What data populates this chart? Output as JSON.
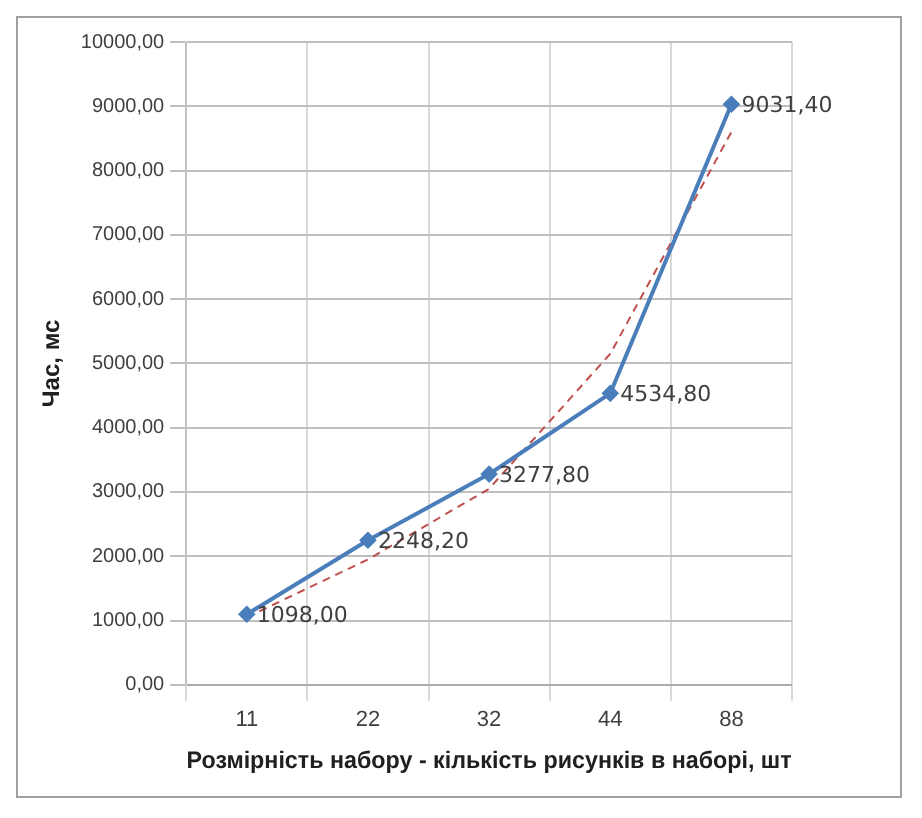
{
  "chart_data": {
    "type": "line",
    "xlabel": "Розмірність набору - кількість рисунків в наборі, шт",
    "ylabel": "Час, мс",
    "categories": [
      "11",
      "22",
      "32",
      "44",
      "88"
    ],
    "series": [
      {
        "color": "#4a7ebb",
        "values": [
          1098.0,
          2248.2,
          3277.8,
          4534.8,
          9031.4
        ],
        "value_labels": [
          "1098,00",
          "2248,20",
          "3277,80",
          "4534,80",
          "9031,40"
        ],
        "marker": "diamond",
        "line_style": "solid"
      },
      {
        "type": "line",
        "color": "#c0504d",
        "values": [
          1050,
          1950,
          3050,
          5150,
          8600
        ],
        "marker": "none",
        "line_style": "dashed"
      }
    ],
    "ylim": [
      0,
      10000
    ],
    "yticks": [
      {
        "value": 0,
        "label": "0,00"
      },
      {
        "value": 1000,
        "label": "1000,00"
      },
      {
        "value": 2000,
        "label": "2000,00"
      },
      {
        "value": 3000,
        "label": "3000,00"
      },
      {
        "value": 4000,
        "label": "4000,00"
      },
      {
        "value": 5000,
        "label": "5000,00"
      },
      {
        "value": 6000,
        "label": "6000,00"
      },
      {
        "value": 7000,
        "label": "7000,00"
      },
      {
        "value": 8000,
        "label": "8000,00"
      },
      {
        "value": 9000,
        "label": "9000,00"
      },
      {
        "value": 10000,
        "label": "10000,00"
      }
    ],
    "grid": true,
    "legend": false
  }
}
